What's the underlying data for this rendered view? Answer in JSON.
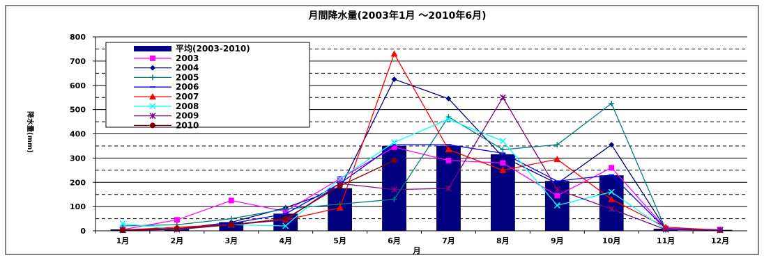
{
  "chart_data": {
    "type": "bar",
    "title": "月間降水量(2003年1月 〜2010年6月)",
    "xlabel": "月",
    "ylabel": "降水量(mm)",
    "ylim": [
      0,
      800
    ],
    "yticks": [
      0,
      100,
      200,
      300,
      400,
      500,
      600,
      700,
      800
    ],
    "grid": "dashed horizontal gridlines every 50",
    "legend_placement": "top-left",
    "categories": [
      "1月",
      "2月",
      "3月",
      "4月",
      "5月",
      "6月",
      "7月",
      "8月",
      "9月",
      "10月",
      "11月",
      "12月"
    ],
    "series": [
      {
        "name": "平均(2003-2010)",
        "kind": "bar",
        "color": "#000080",
        "values": [
          5,
          10,
          35,
          70,
          175,
          350,
          350,
          315,
          205,
          228,
          8,
          3
        ]
      },
      {
        "name": "2003",
        "kind": "line",
        "color": "#ff00ff",
        "marker": "square",
        "values": [
          5,
          45,
          125,
          80,
          215,
          345,
          290,
          280,
          145,
          260,
          10,
          5
        ]
      },
      {
        "name": "2004",
        "kind": "line",
        "color": "#000080",
        "marker": "diamond",
        "values": [
          3,
          8,
          35,
          95,
          175,
          625,
          545,
          305,
          195,
          355,
          8,
          3
        ]
      },
      {
        "name": "2005",
        "kind": "line",
        "color": "#008080",
        "marker": "plus",
        "values": [
          20,
          25,
          50,
          90,
          110,
          130,
          470,
          335,
          355,
          525,
          5,
          3
        ]
      },
      {
        "name": "2006",
        "kind": "line",
        "color": "#0000ff",
        "marker": "dash",
        "values": [
          3,
          5,
          30,
          70,
          195,
          355,
          355,
          320,
          205,
          230,
          8,
          3
        ]
      },
      {
        "name": "2007",
        "kind": "line",
        "color": "#ff0000",
        "marker": "triangle",
        "values": [
          3,
          15,
          25,
          45,
          95,
          730,
          335,
          250,
          295,
          130,
          15,
          3
        ]
      },
      {
        "name": "2008",
        "kind": "line",
        "color": "#00ffff",
        "marker": "x",
        "values": [
          30,
          5,
          25,
          20,
          215,
          365,
          460,
          370,
          105,
          160,
          5,
          3
        ]
      },
      {
        "name": "2009",
        "kind": "line",
        "color": "#800080",
        "marker": "star",
        "values": [
          3,
          5,
          25,
          45,
          195,
          170,
          175,
          550,
          170,
          90,
          5,
          3
        ]
      },
      {
        "name": "2010",
        "kind": "line",
        "color": "#800000",
        "marker": "circle",
        "values": [
          3,
          10,
          25,
          50,
          185,
          290,
          null,
          null,
          null,
          null,
          null,
          null
        ]
      }
    ]
  }
}
